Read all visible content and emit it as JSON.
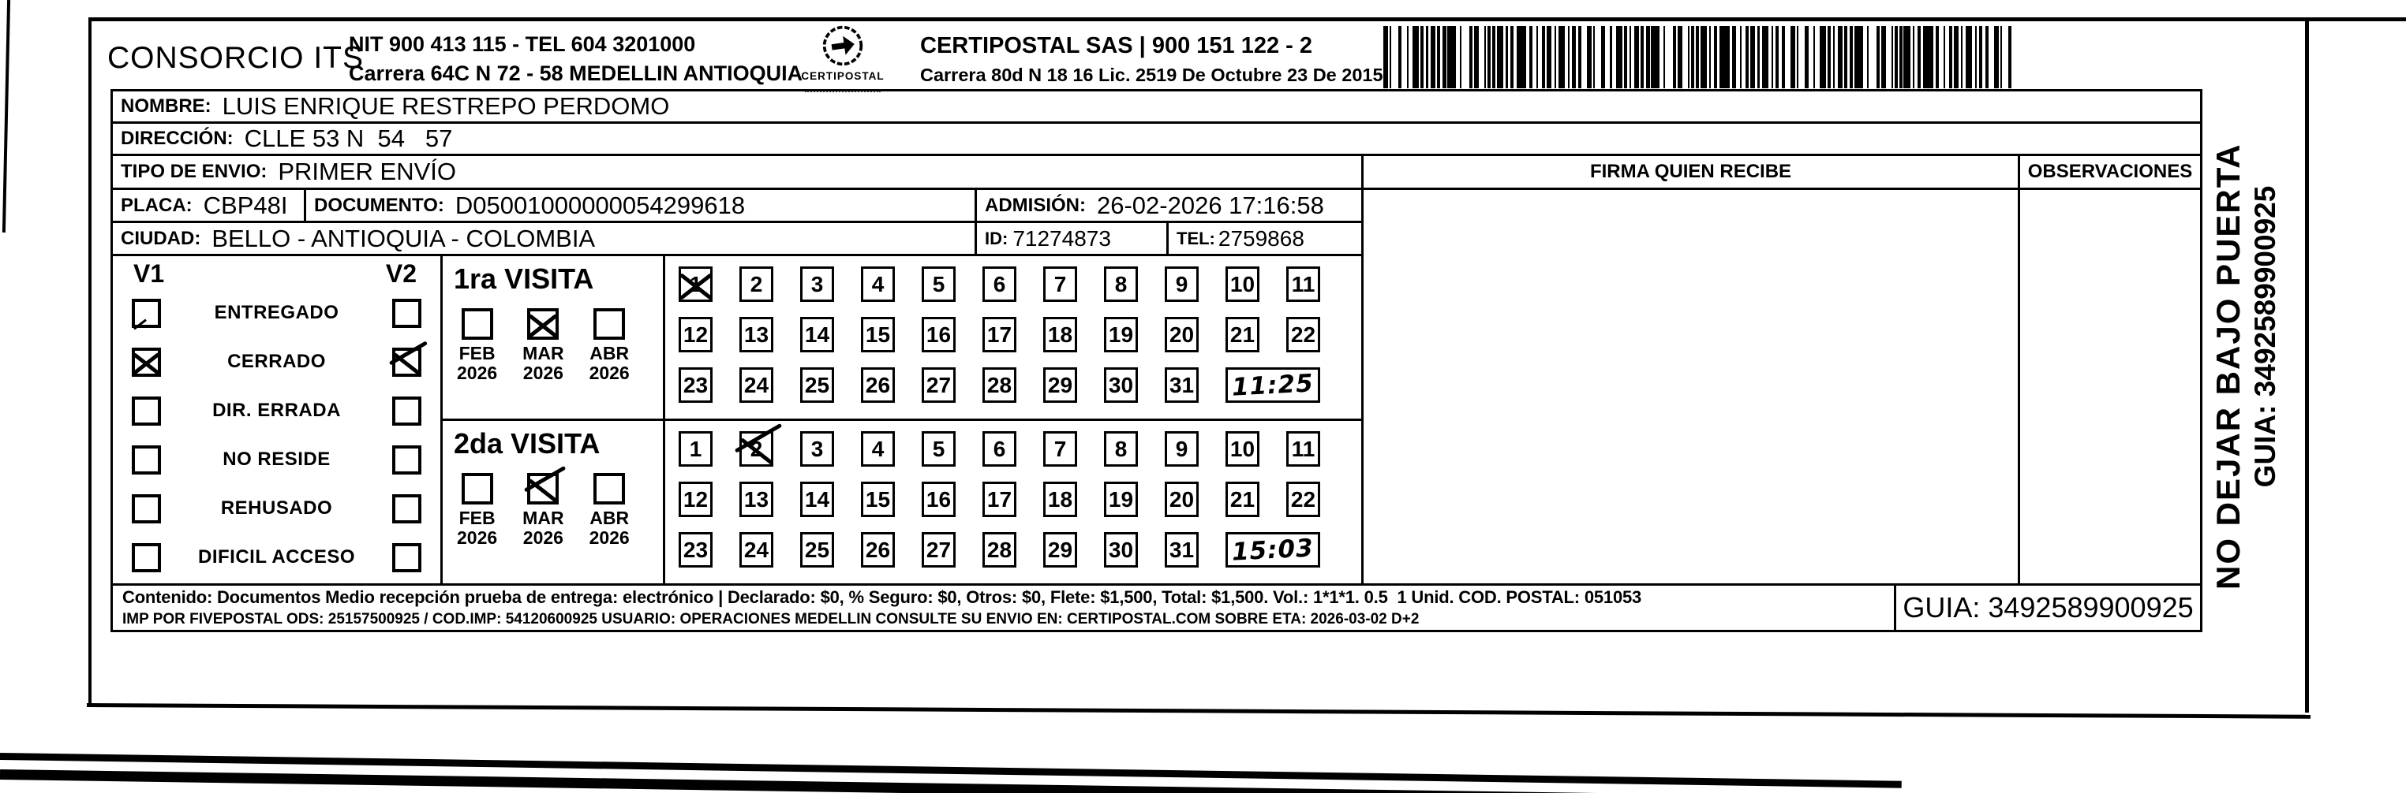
{
  "scan": {
    "company": "CONSORCIO ITS",
    "nit_line": "NIT 900 413 115 - TEL 604 3201000",
    "company_address": "Carrera 64C N 72 - 58 MEDELLIN ANTIOQUIA",
    "logo_text": "CERTIPOSTAL",
    "certipostal_line1": "CERTIPOSTAL SAS | 900 151 122 - 2",
    "certipostal_line2": "Carrera 80d N 18 16  Lic. 2519 De Octubre 23 De 2015"
  },
  "fields": {
    "nombre_label": "NOMBRE:",
    "nombre": "LUIS ENRIQUE RESTREPO PERDOMO",
    "direccion_label": "DIRECCIÓN:",
    "direccion": "CLLE 53 N  54   57",
    "tipo_label": "TIPO DE ENVIO:",
    "tipo": "PRIMER ENVÍO",
    "placa_label": "PLACA:",
    "placa": "CBP48I",
    "documento_label": "DOCUMENTO:",
    "documento": "D05001000000054299618",
    "admision_label": "ADMISIÓN:",
    "admision": "26-02-2026 17:16:58",
    "ciudad_label": "CIUDAD:",
    "ciudad": "BELLO - ANTIOQUIA - COLOMBIA",
    "id_label": "ID:",
    "id_value": "71274873",
    "tel_label": "TEL:",
    "tel_value": "2759868"
  },
  "signature": {
    "firma_header": "FIRMA QUIEN RECIBE",
    "observaciones_header": "OBSERVACIONES"
  },
  "status": {
    "col1": "V1",
    "col2": "V2",
    "items": [
      {
        "label": "ENTREGADO",
        "v1": "stray",
        "v2": null
      },
      {
        "label": "CERRADO",
        "v1": "x",
        "v2": "x-tail"
      },
      {
        "label": "DIR. ERRADA",
        "v1": null,
        "v2": null
      },
      {
        "label": "NO RESIDE",
        "v1": null,
        "v2": null
      },
      {
        "label": "REHUSADO",
        "v1": null,
        "v2": null
      },
      {
        "label": "DIFICIL ACCESO",
        "v1": null,
        "v2": null
      }
    ]
  },
  "visits": [
    {
      "title": "1ra VISITA",
      "months": [
        {
          "month": "FEB",
          "year": "2026",
          "mark": null
        },
        {
          "month": "MAR",
          "year": "2026",
          "mark": "x"
        },
        {
          "month": "ABR",
          "year": "2026",
          "mark": null
        }
      ],
      "crossed_day": 1,
      "cross_style": "x",
      "time": "11:25"
    },
    {
      "title": "2da VISITA",
      "months": [
        {
          "month": "FEB",
          "year": "2026",
          "mark": null
        },
        {
          "month": "MAR",
          "year": "2026",
          "mark": "x-tail"
        },
        {
          "month": "ABR",
          "year": "2026",
          "mark": null
        }
      ],
      "crossed_day": 2,
      "cross_style": "x-tail",
      "time": "15:03"
    }
  ],
  "days": [
    1,
    2,
    3,
    4,
    5,
    6,
    7,
    8,
    9,
    10,
    11,
    12,
    13,
    14,
    15,
    16,
    17,
    18,
    19,
    20,
    21,
    22,
    23,
    24,
    25,
    26,
    27,
    28,
    29,
    30,
    31
  ],
  "side_note": {
    "line1": "NO DEJAR BAJO PUERTA",
    "line2": "GUIA: 3492589900925"
  },
  "footer": {
    "line1": "Contenido: Documentos Medio recepción prueba de entrega: electrónico | Declarado: $0, % Seguro: $0, Otros: $0, Flete: $1,500, Total: $1,500. Vol.: 1*1*1. 0.5  1 Unid. COD. POSTAL: 051053",
    "line2": "IMP POR FIVEPOSTAL ODS: 25157500925 / COD.IMP: 54120600925 USUARIO: OPERACIONES MEDELLIN CONSULTE SU ENVIO EN: CERTIPOSTAL.COM SOBRE ETA: 2026-03-02 D+2",
    "guia": "GUIA: 3492589900925"
  }
}
